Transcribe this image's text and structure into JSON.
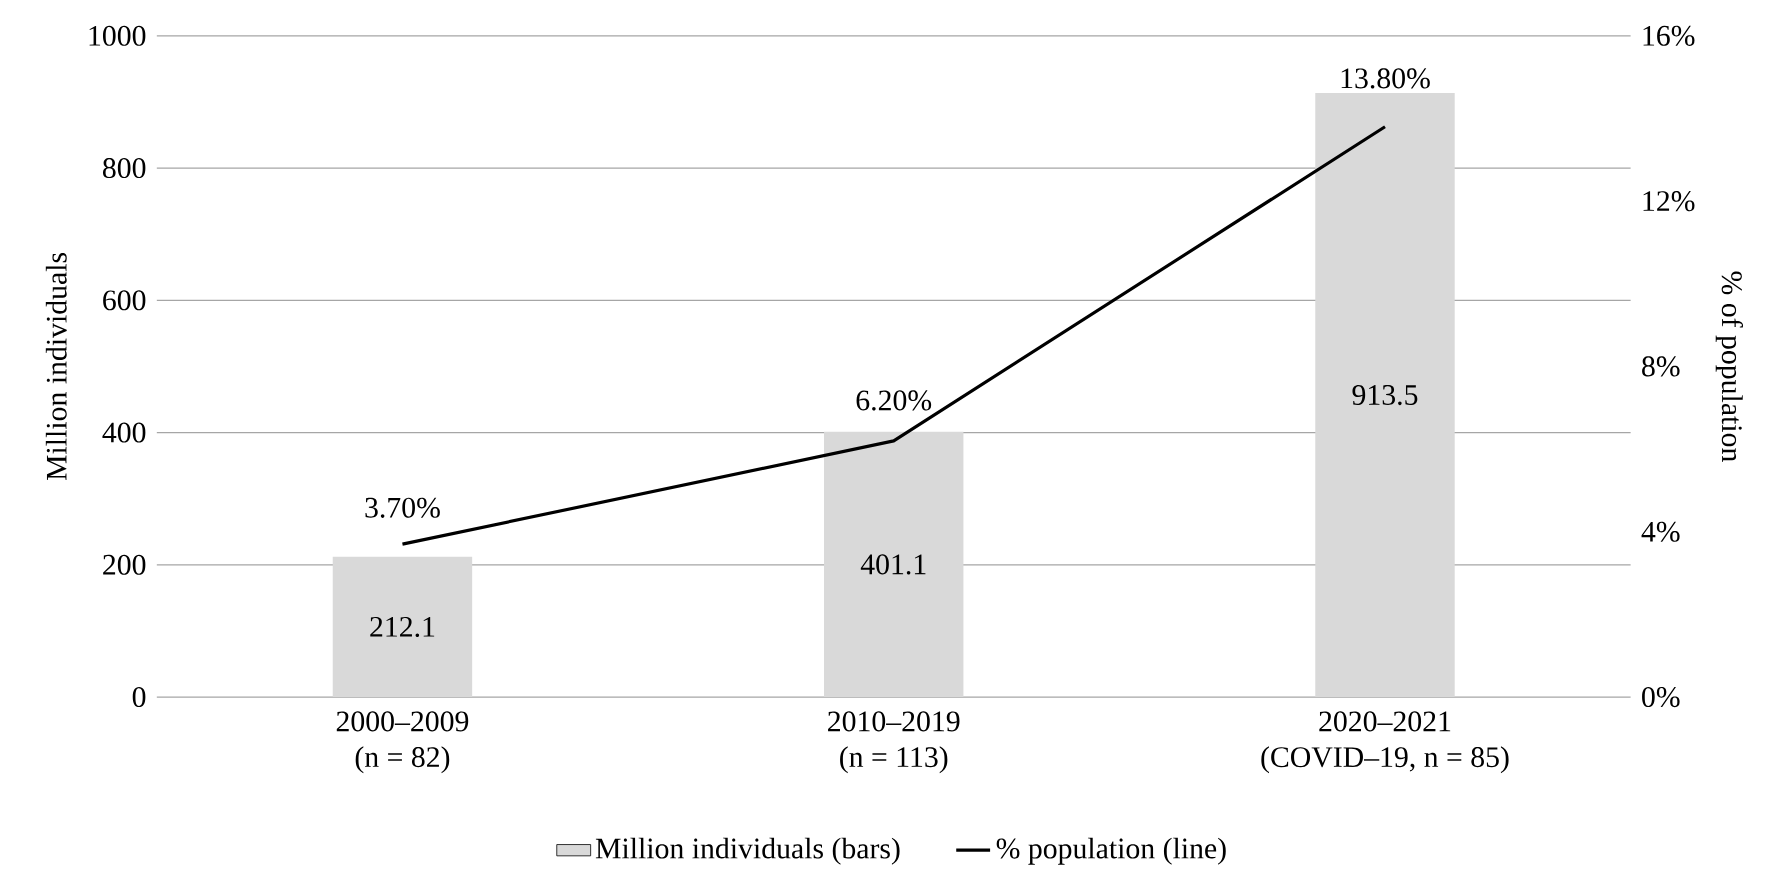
{
  "chart_data": {
    "type": "bar",
    "categories": [
      "2000–2009 (n = 82)",
      "2010–2019 (n = 113)",
      "2020–2021 (COVID–19, n = 85)"
    ],
    "series": [
      {
        "name": "Million individuals (bars)",
        "color": "#d9d9d9",
        "values": [
          212.1,
          401.1,
          913.5
        ],
        "value_labels": [
          "212.1",
          "401.1",
          "913.5"
        ]
      },
      {
        "name": "% population (line)",
        "type": "line",
        "axis": "y2",
        "color": "#000000",
        "values": [
          3.7,
          6.2,
          13.8
        ],
        "value_labels": [
          "3.70%",
          "6.20%",
          "13.80%"
        ]
      }
    ],
    "ylabel": "Million individuals",
    "y2label": "% of population",
    "ylim": [
      0,
      1000
    ],
    "yticks": [
      0,
      200,
      400,
      600,
      800,
      1000
    ],
    "y2lim": [
      0,
      16
    ],
    "y2ticks": [
      {
        "value": 0,
        "label": "0%"
      },
      {
        "value": 4,
        "label": "4%"
      },
      {
        "value": 8,
        "label": "8%"
      },
      {
        "value": 12,
        "label": "12%"
      },
      {
        "value": 16,
        "label": "16%"
      }
    ],
    "grid": "y",
    "legend": "bottom"
  }
}
